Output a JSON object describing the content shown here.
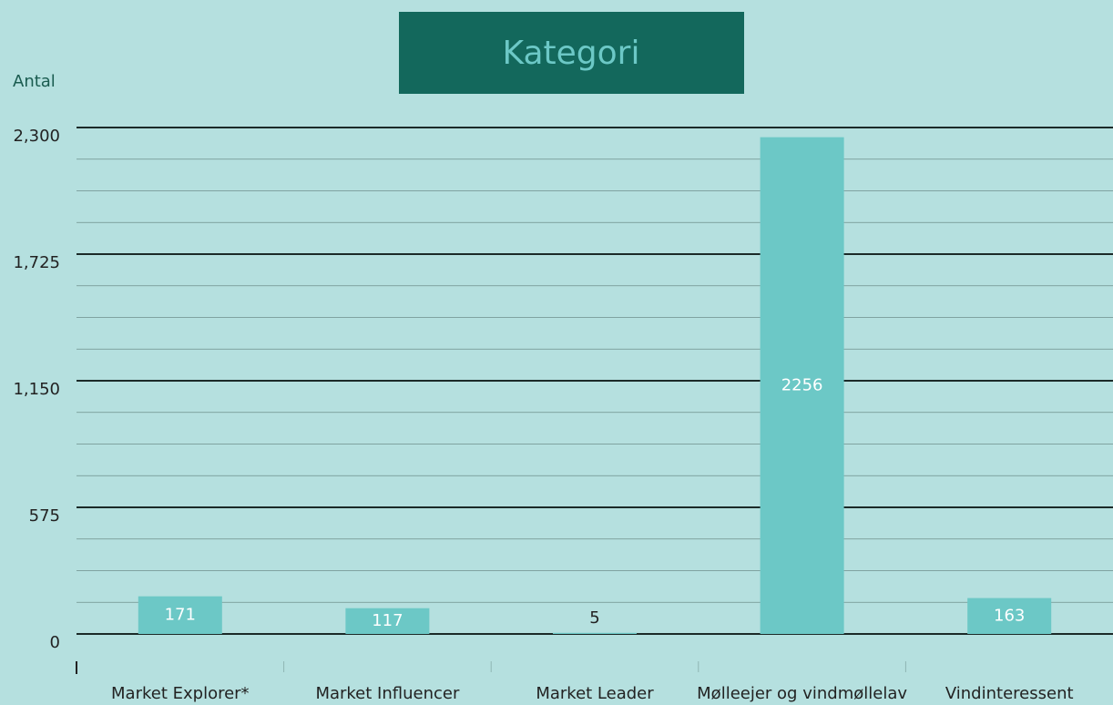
{
  "chart_data": {
    "type": "bar",
    "title": "Kategori",
    "y_label": "Antal",
    "categories": [
      "Market Explorer*",
      "Market Influencer",
      "Market Leader",
      "Mølleejer og vindmøllelav",
      "Vindinteressent"
    ],
    "values": [
      171,
      117,
      5,
      2256,
      163
    ],
    "color": "#6cc8c6",
    "ylim": [
      0,
      2300
    ],
    "yticks": [
      0,
      575,
      {
        "value": 1150,
        "label": "1,150"
      },
      {
        "value": 1725,
        "label": "1,725"
      },
      {
        "value": 2300,
        "label": "2,300"
      }
    ],
    "grid": true
  }
}
